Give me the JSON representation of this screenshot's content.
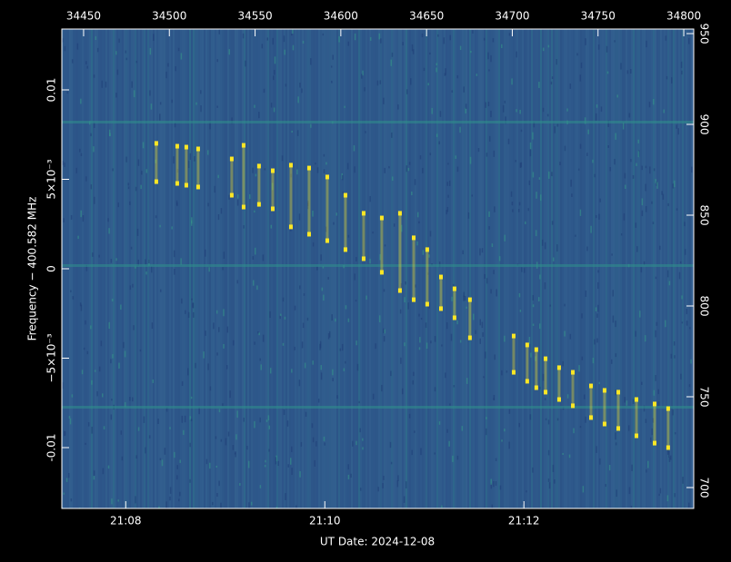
{
  "chart_data": {
    "type": "scatter",
    "x_label": "UT Date: 2024-12-08",
    "y_label": "Frequency − 400.582 MHz",
    "color": "#fde725",
    "xlim": [
      34437.3,
      34805.8
    ],
    "xticks": [
      34450,
      34500,
      34550,
      34600,
      34650,
      34700,
      34750,
      34800
    ],
    "x2lim": [
      1267.358,
      1273.706
    ],
    "x2ticks": [
      {
        "value": 1268,
        "label": "21:08"
      },
      {
        "value": 1270,
        "label": "21:10"
      },
      {
        "value": 1272,
        "label": "21:12"
      }
    ],
    "ylim": [
      -0.0134,
      0.0134
    ],
    "yticks": [
      0.01,
      {
        "value": 0.005,
        "label": "5×10⁻³"
      },
      0,
      {
        "value": -0.005,
        "label": "−5×10⁻³"
      },
      -0.01
    ],
    "y2lim": [
      688.5,
      952.5
    ],
    "y2ticks": [
      700,
      750,
      800,
      850,
      900,
      950
    ],
    "series": [
      {
        "x": [
          34492.4,
          34504.6,
          34509.9,
          34516.8,
          34536.4,
          34543.3,
          34552.3,
          34560.3,
          34570.9,
          34581.5,
          34592.1,
          34602.7,
          34613.3,
          34623.9,
          34634.5,
          34642.5,
          34650.4,
          34658.4,
          34666.3,
          34675.3,
          34700.8,
          34708.7,
          34714.0,
          34719.4,
          34727.3,
          34735.3,
          34745.9,
          34753.8,
          34761.8,
          34772.4,
          34783.0,
          34790.9
        ],
        "values": [
          0.00701,
          0.00685,
          0.0068,
          0.0067,
          0.00614,
          0.0069,
          0.00574,
          0.00548,
          0.00579,
          0.00563,
          0.00513,
          0.00411,
          0.0031,
          0.00284,
          0.0031,
          0.00173,
          0.00107,
          -0.00046,
          -0.00112,
          -0.00173,
          -0.00376,
          -0.00426,
          -0.00452,
          -0.00503,
          -0.00553,
          -0.00579,
          -0.00655,
          -0.0068,
          -0.0069,
          -0.00731,
          -0.00756,
          -0.00782
        ]
      },
      {
        "x": [
          34492.4,
          34504.6,
          34509.9,
          34516.8,
          34536.4,
          34543.3,
          34552.3,
          34560.3,
          34570.9,
          34581.5,
          34592.1,
          34602.7,
          34613.3,
          34623.9,
          34634.5,
          34642.5,
          34650.4,
          34658.4,
          34666.3,
          34675.3,
          34700.8,
          34708.7,
          34714.0,
          34719.4,
          34727.3,
          34735.3,
          34745.9,
          34753.8,
          34761.8,
          34772.4,
          34783.0,
          34790.9
        ],
        "values": [
          0.00487,
          0.00477,
          0.00467,
          0.00457,
          0.00411,
          0.00345,
          0.0036,
          0.00335,
          0.00234,
          0.00193,
          0.00157,
          0.00107,
          0.00056,
          -0.0002,
          -0.00122,
          -0.00173,
          -0.00198,
          -0.00223,
          -0.00274,
          -0.00386,
          -0.00579,
          -0.00629,
          -0.00665,
          -0.0069,
          -0.00731,
          -0.00766,
          -0.00832,
          -0.00868,
          -0.00893,
          -0.00934,
          -0.00975,
          -0.01
        ]
      }
    ]
  }
}
